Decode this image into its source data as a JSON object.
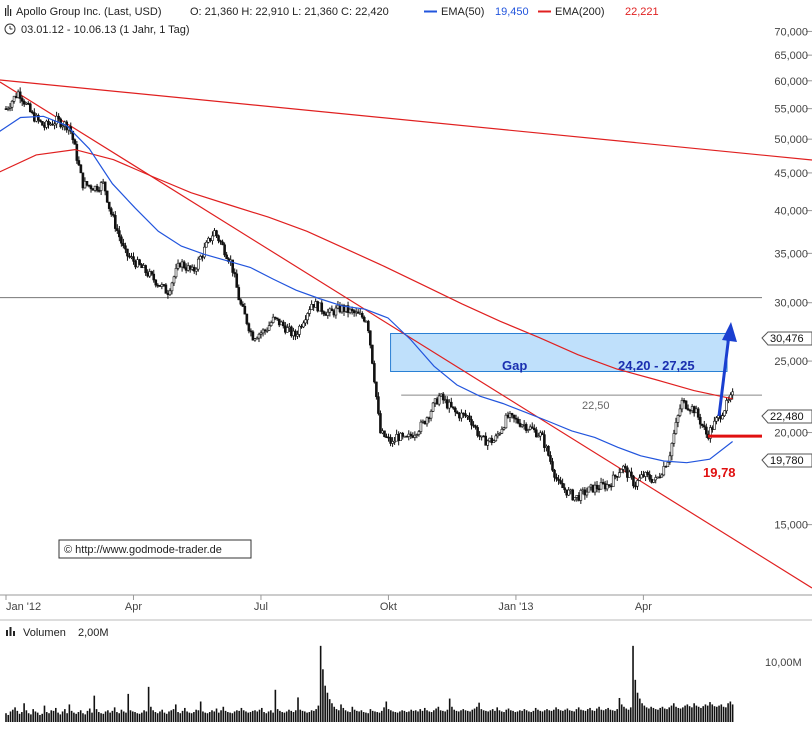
{
  "header": {
    "line1_prefix": "Apollo Group Inc. (Last, USD)",
    "ohlc": "O: 21,360  H: 22,910  L: 21,360  C: 22,420",
    "ema50_label": "EMA(50)",
    "ema50_value": "19,450",
    "ema200_label": "EMA(200)",
    "ema200_value": "22,221",
    "line2": "03.01.12 - 10.06.13 (1 Jahr, 1 Tag)"
  },
  "copyright": "© http://www.godmode-trader.de",
  "volume_label": "Volumen",
  "volume_value": "2,00M",
  "volume_axis_label": "10,00M",
  "annotations": {
    "gap_label": "Gap",
    "gap_range": "24,20 - 27,25",
    "level_2250": "22,50",
    "support_value": "19,78",
    "price_tag_30476": "30,476",
    "price_tag_22480": "22,480",
    "price_tag_19780": "19,780"
  },
  "colors": {
    "ema50": "#2255dd",
    "ema200": "#e02020",
    "trendline": "#e02020",
    "gap_fill": "#bfe0fb",
    "gap_border": "#2a7fd4",
    "gap_text": "#1a2fb0",
    "arrow": "#1a3fd0",
    "support": "#e01010",
    "candle": "#111111",
    "volume": "#111111"
  },
  "chart_data": [
    {
      "type": "line",
      "title": "Apollo Group Inc. (Last, USD)",
      "subtitle": "03.01.12 - 10.06.13 (1 Jahr, 1 Tag)",
      "scale": "log",
      "x_ticks": [
        "Jan '12",
        "Apr",
        "Jul",
        "Okt",
        "Jan '13",
        "Apr"
      ],
      "y_ticks": [
        "70,000",
        "65,000",
        "60,000",
        "55,000",
        "50,000",
        "45,000",
        "40,000",
        "35,000",
        "30,000",
        "25,000",
        "20,000",
        "15,000"
      ],
      "ylim": [
        13.6,
        73
      ],
      "grid": false,
      "legend_position": "top",
      "x_months_since_jan_2012": [
        0,
        0.3,
        0.6,
        0.9,
        1.2,
        1.5,
        1.8,
        2.1,
        2.3,
        2.45,
        2.8,
        3.3,
        3.8,
        4.1,
        4.4,
        4.9,
        5.3,
        5.5,
        5.8,
        6.1,
        6.3,
        6.5,
        6.8,
        7.2,
        7.6,
        7.9,
        8.2,
        8.5,
        8.8,
        9.1,
        9.2,
        9.4,
        9.8,
        10.2,
        10.6,
        10.9,
        11.2,
        11.5,
        11.8,
        12.2,
        12.6,
        13.0,
        13.4,
        13.8,
        14.2,
        14.5,
        14.8,
        15.0,
        15.3,
        15.6,
        15.9,
        16.2,
        16.5,
        17.1
      ],
      "series": [
        {
          "name": "Apollo Group Inc. (Last, USD)",
          "values": [
            55,
            58,
            54,
            52,
            53,
            52,
            43.5,
            43,
            43.5,
            40,
            35,
            33,
            31,
            34,
            33,
            37.5,
            34,
            30,
            27,
            27.5,
            28.5,
            28,
            27,
            30,
            29,
            29.5,
            29,
            28.5,
            20,
            19.3,
            19.8,
            19.5,
            20.5,
            22.4,
            21.2,
            21,
            19.5,
            19.5,
            21,
            20.5,
            19.8,
            17,
            16.3,
            16.8,
            17,
            18,
            17,
            17.5,
            17.2,
            18.5,
            22,
            21.5,
            19.8,
            22.42
          ]
        },
        {
          "name": "EMA(50)",
          "values": [
            51,
            53.5,
            53.7,
            52.2,
            48.5,
            43.5,
            40.3,
            37.5,
            35.8,
            34.9,
            34.2,
            33.5,
            32.3,
            31.2,
            30.4,
            29.7,
            29.4,
            28.6,
            26.7,
            24.6,
            23.2,
            22.4,
            21.9,
            21.3,
            20.7,
            20.1,
            19.7,
            19.1,
            18.6,
            18.3,
            18.2,
            18.4,
            19.45
          ]
        },
        {
          "name": "EMA(200)",
          "values": [
            45,
            47.6,
            48.4,
            46.9,
            44.5,
            42.3,
            40.7,
            39.2,
            37.5,
            35.5,
            33.6,
            31.7,
            29.9,
            28.3,
            26.9,
            25.5,
            24.4,
            23.6,
            22.8,
            22.221
          ]
        }
      ]
    },
    {
      "type": "bar",
      "title": "Volumen",
      "subtitle": "2,00M",
      "y_ticks": [
        "10,00M"
      ],
      "ylim": [
        0,
        14
      ],
      "grid": false,
      "series": [
        {
          "name": "Volumen",
          "values": [
            1.5,
            1.2,
            1.8,
            2.1,
            2.5,
            1.9,
            1.4,
            1.7,
            3.2,
            2.0,
            1.5,
            1.3,
            2.2,
            1.8,
            1.6,
            1.2,
            1.4,
            2.8,
            1.7,
            1.5,
            2.0,
            1.9,
            2.4,
            1.6,
            1.3,
            1.8,
            2.2,
            1.5,
            3.0,
            1.9,
            1.6,
            1.4,
            1.7,
            2.0,
            1.5,
            1.3,
            1.9,
            2.3,
            1.6,
            4.5,
            2.2,
            1.7,
            1.5,
            1.4,
            1.8,
            2.0,
            1.6,
            1.9,
            2.5,
            1.7,
            1.5,
            2.1,
            1.8,
            1.6,
            4.8,
            2.0,
            1.8,
            1.7,
            1.5,
            1.4,
            1.6,
            2.0,
            1.8,
            6.0,
            2.6,
            2.0,
            1.7,
            1.5,
            1.8,
            2.1,
            1.6,
            1.4,
            1.8,
            2.0,
            2.2,
            3.0,
            1.7,
            1.5,
            1.9,
            2.4,
            1.8,
            1.6,
            1.5,
            1.7,
            2.1,
            2.0,
            3.5,
            1.8,
            1.6,
            1.5,
            1.7,
            2.0,
            1.8,
            2.3,
            1.6,
            2.0,
            2.6,
            1.9,
            1.7,
            1.6,
            1.5,
            1.8,
            2.0,
            1.9,
            2.4,
            2.0,
            1.8,
            1.6,
            1.7,
            1.9,
            2.0,
            1.8,
            2.1,
            2.4,
            1.7,
            1.5,
            1.8,
            2.0,
            1.6,
            5.5,
            2.2,
            1.9,
            1.7,
            1.6,
            1.8,
            2.1,
            1.9,
            1.7,
            2.0,
            4.2,
            2.1,
            1.9,
            1.8,
            1.6,
            1.7,
            2.0,
            1.9,
            2.2,
            2.8,
            13.0,
            9.0,
            6.2,
            5.0,
            3.9,
            3.2,
            2.6,
            2.2,
            2.0,
            3.0,
            2.4,
            2.0,
            1.8,
            1.7,
            2.6,
            2.1,
            1.9,
            1.8,
            2.0,
            1.7,
            1.6,
            1.5,
            2.2,
            1.9,
            1.8,
            1.7,
            1.6,
            1.9,
            2.5,
            3.5,
            2.2,
            2.0,
            1.8,
            1.7,
            1.6,
            1.8,
            2.0,
            1.9,
            1.7,
            1.8,
            2.1,
            1.9,
            2.0,
            1.8,
            2.2,
            1.9,
            2.4,
            2.0,
            1.8,
            1.7,
            2.0,
            2.3,
            2.6,
            2.0,
            1.9,
            1.8,
            2.1,
            4.0,
            2.6,
            2.1,
            1.9,
            1.8,
            2.0,
            2.2,
            2.0,
            1.9,
            1.8,
            2.1,
            2.3,
            2.6,
            3.3,
            2.2,
            2.0,
            1.9,
            1.8,
            2.0,
            2.2,
            1.9,
            2.5,
            2.0,
            1.8,
            1.7,
            2.1,
            2.3,
            2.0,
            1.9,
            1.7,
            1.8,
            2.0,
            1.9,
            2.2,
            2.0,
            1.8,
            1.7,
            1.9,
            2.4,
            2.1,
            1.9,
            1.8,
            2.0,
            2.2,
            2.0,
            1.9,
            2.1,
            2.5,
            2.2,
            2.0,
            1.9,
            2.1,
            2.3,
            2.0,
            1.9,
            1.8,
            2.2,
            2.5,
            2.1,
            2.0,
            1.9,
            2.2,
            2.4,
            2.0,
            1.9,
            2.3,
            2.6,
            2.1,
            2.0,
            2.2,
            2.4,
            2.1,
            2.0,
            1.9,
            2.2,
            4.1,
            3.0,
            2.6,
            2.3,
            2.1,
            2.5,
            13.0,
            7.2,
            5.0,
            4.0,
            3.2,
            2.8,
            2.5,
            2.3,
            2.6,
            2.4,
            2.2,
            2.1,
            2.4,
            2.6,
            2.3,
            2.2,
            2.5,
            2.8,
            3.2,
            2.6,
            2.4,
            2.3,
            2.5,
            2.8,
            3.0,
            2.7,
            2.5,
            3.2,
            2.8,
            2.6,
            2.4,
            2.7,
            3.0,
            2.8,
            3.4,
            3.0,
            2.7,
            2.6,
            2.8,
            3.0,
            2.6,
            2.5,
            3.2,
            3.5,
            3.0
          ]
        }
      ]
    }
  ]
}
